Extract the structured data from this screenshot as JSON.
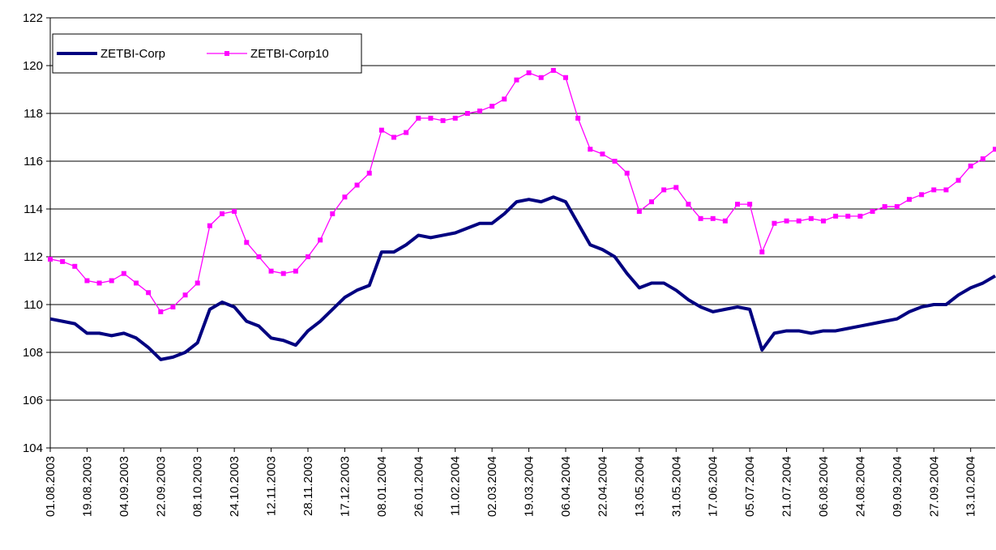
{
  "chart_data": {
    "type": "line",
    "categories": [
      "01.08.2003",
      null,
      null,
      "19.08.2003",
      null,
      null,
      "04.09.2003",
      null,
      null,
      "22.09.2003",
      null,
      null,
      "08.10.2003",
      null,
      null,
      "24.10.2003",
      null,
      null,
      "12.11.2003",
      null,
      null,
      "28.11.2003",
      null,
      null,
      "17.12.2003",
      null,
      null,
      "08.01.2004",
      null,
      null,
      "26.01.2004",
      null,
      null,
      "11.02.2004",
      null,
      null,
      "02.03.2004",
      null,
      null,
      "19.03.2004",
      null,
      null,
      "06.04.2004",
      null,
      null,
      "22.04.2004",
      null,
      null,
      "13.05.2004",
      null,
      null,
      "31.05.2004",
      null,
      null,
      "17.06.2004",
      null,
      null,
      "05.07.2004",
      null,
      null,
      "21.07.2004",
      null,
      null,
      "06.08.2004",
      null,
      null,
      "24.08.2004",
      null,
      null,
      "09.09.2004",
      null,
      null,
      "27.09.2004",
      null,
      null,
      "13.10.2004",
      null,
      null
    ],
    "series": [
      {
        "name": "ZETBI-Corp",
        "color": "#000080",
        "values": [
          109.4,
          109.3,
          109.2,
          108.8,
          108.8,
          108.7,
          108.8,
          108.6,
          108.2,
          107.7,
          107.8,
          108.0,
          108.4,
          109.8,
          110.1,
          109.9,
          109.3,
          109.1,
          108.6,
          108.5,
          108.3,
          108.9,
          109.3,
          109.8,
          110.3,
          110.6,
          110.8,
          112.2,
          112.2,
          112.5,
          112.9,
          112.8,
          112.9,
          113.0,
          113.2,
          113.4,
          113.4,
          113.8,
          114.3,
          114.4,
          114.3,
          114.5,
          114.3,
          113.4,
          112.5,
          112.3,
          112.0,
          111.3,
          110.7,
          110.9,
          110.9,
          110.6,
          110.2,
          109.9,
          109.7,
          109.8,
          109.9,
          109.8,
          108.1,
          108.8,
          108.9,
          108.9,
          108.8,
          108.9,
          108.9,
          109.0,
          109.1,
          109.2,
          109.3,
          109.4,
          109.7,
          109.9,
          110.0,
          110.0,
          110.4,
          110.7,
          110.9,
          111.2
        ]
      },
      {
        "name": "ZETBI-Corp10",
        "color": "#ff00ff",
        "values": [
          111.9,
          111.8,
          111.6,
          111.0,
          110.9,
          111.0,
          111.3,
          110.9,
          110.5,
          109.7,
          109.9,
          110.4,
          110.9,
          113.3,
          113.8,
          113.9,
          112.6,
          112.0,
          111.4,
          111.3,
          111.4,
          112.0,
          112.7,
          113.8,
          114.5,
          115.0,
          115.5,
          117.3,
          117.0,
          117.2,
          117.8,
          117.8,
          117.7,
          117.8,
          118.0,
          118.1,
          118.3,
          118.6,
          119.4,
          119.7,
          119.5,
          119.8,
          119.5,
          117.8,
          116.5,
          116.3,
          116.0,
          115.5,
          113.9,
          114.3,
          114.8,
          114.9,
          114.2,
          113.6,
          113.6,
          113.5,
          114.2,
          114.2,
          112.2,
          113.4,
          113.5,
          113.5,
          113.6,
          113.5,
          113.7,
          113.7,
          113.7,
          113.9,
          114.1,
          114.1,
          114.4,
          114.6,
          114.8,
          114.8,
          115.2,
          115.8,
          116.1,
          116.5
        ]
      }
    ],
    "ylim": [
      104,
      122
    ],
    "yticks": [
      104,
      106,
      108,
      110,
      112,
      114,
      116,
      118,
      120,
      122
    ],
    "grid": true,
    "legend": "top-left"
  }
}
